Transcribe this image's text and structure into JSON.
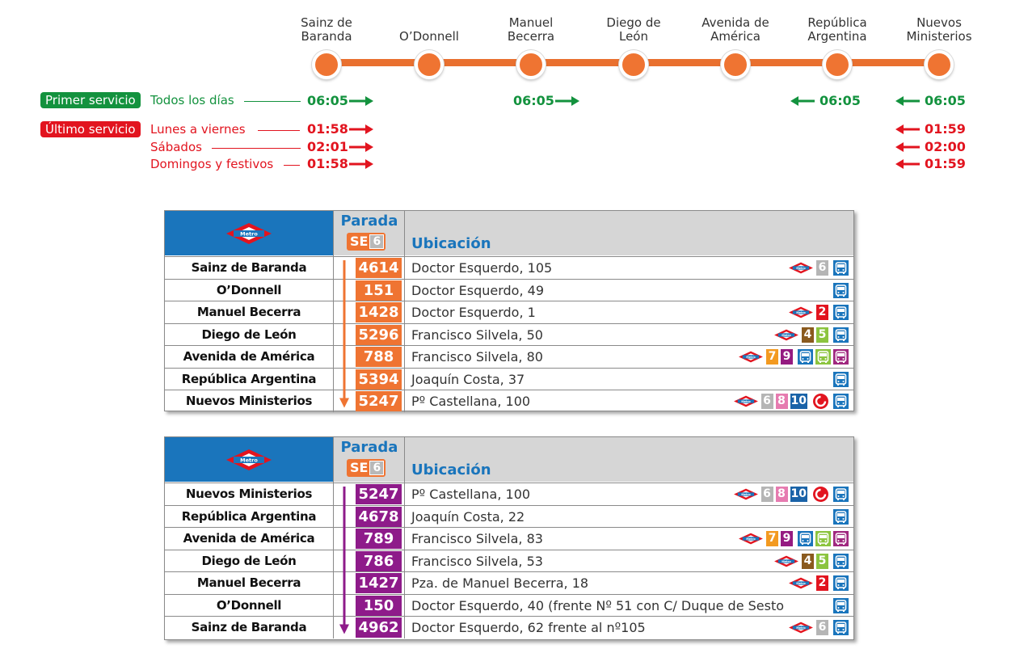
{
  "colors": {
    "orange": "#ef7432",
    "purple": "#8e1b8a",
    "metro_blue": "#1a75bc",
    "green": "#13923e",
    "red": "#e2141f",
    "line_2": "#e2141f",
    "line_4": "#8a5a1e",
    "line_5": "#8cc43f",
    "line_6": "#b5b5b5",
    "line_7": "#f39a20",
    "line_8": "#e67bb0",
    "line_9": "#951b81",
    "line_10": "#1a63a8",
    "bus_blue": "#1a75bc",
    "bus_green": "#8cc43f",
    "bus_purple": "#a0287f"
  },
  "stations": [
    {
      "name": "Sainz de Baranda"
    },
    {
      "name": "O'Donnell"
    },
    {
      "name": "Manuel Becerra"
    },
    {
      "name": "Diego de León"
    },
    {
      "name": "Avenida de América"
    },
    {
      "name": "República Argentina"
    },
    {
      "name": "Nuevos Ministerios"
    }
  ],
  "stations_display": [
    [
      "Sainz de",
      "Baranda"
    ],
    [
      "O’Donnell"
    ],
    [
      "Manuel",
      "Becerra"
    ],
    [
      "Diego de",
      "León"
    ],
    [
      "Avenida de",
      "América"
    ],
    [
      "República",
      "Argentina"
    ],
    [
      "Nuevos",
      "Ministerios"
    ]
  ],
  "first_service": {
    "badge": "Primer servicio",
    "label": "Todos los días",
    "times": [
      {
        "station": "Sainz de Baranda",
        "time": "06:05",
        "direction": "right"
      },
      {
        "station": "Manuel Becerra",
        "time": "06:05",
        "direction": "right"
      },
      {
        "station": "República Argentina",
        "time": "06:05",
        "direction": "left"
      },
      {
        "station": "Nuevos Ministerios",
        "time": "06:05",
        "direction": "left"
      }
    ]
  },
  "last_service": {
    "badge": "Último servicio",
    "rows": [
      {
        "label": "Lunes a viernes",
        "left_time": "01:58",
        "right_time": "01:59"
      },
      {
        "label": "Sábados",
        "left_time": "02:01",
        "right_time": "02:00"
      },
      {
        "label": "Domingos y festivos",
        "left_time": "01:58",
        "right_time": "01:59"
      }
    ]
  },
  "tables": [
    {
      "header": {
        "parada": "Parada",
        "line_code": "SE",
        "line_num": "6",
        "ubicacion": "Ubicación"
      },
      "accent": "orange",
      "rows": [
        {
          "name": "Sainz de Baranda",
          "code": "4614",
          "address": "Doctor Esquerdo, 105",
          "metro": true,
          "lines": [
            "6"
          ],
          "cercanias": false,
          "bus": [
            "blue"
          ]
        },
        {
          "name": "O’Donnell",
          "code": "151",
          "address": "Doctor Esquerdo, 49",
          "metro": false,
          "lines": [],
          "cercanias": false,
          "bus": [
            "blue"
          ]
        },
        {
          "name": "Manuel Becerra",
          "code": "1428",
          "address": "Doctor Esquerdo, 1",
          "metro": true,
          "lines": [
            "2"
          ],
          "cercanias": false,
          "bus": [
            "blue"
          ]
        },
        {
          "name": "Diego de León",
          "code": "5296",
          "address": "Francisco Silvela, 50",
          "metro": true,
          "lines": [
            "4",
            "5"
          ],
          "cercanias": false,
          "bus": [
            "blue"
          ]
        },
        {
          "name": "Avenida de América",
          "code": "788",
          "address": "Francisco Silvela, 80",
          "metro": true,
          "lines": [
            "7",
            "9"
          ],
          "cercanias": false,
          "bus": [
            "blue",
            "green",
            "purple"
          ]
        },
        {
          "name": "República Argentina",
          "code": "5394",
          "address": "Joaquín Costa, 37",
          "metro": false,
          "lines": [],
          "cercanias": false,
          "bus": [
            "blue"
          ]
        },
        {
          "name": "Nuevos Ministerios",
          "code": "5247",
          "address": "Pº Castellana, 100",
          "metro": true,
          "lines": [
            "6",
            "8",
            "10"
          ],
          "cercanias": true,
          "bus": [
            "blue"
          ]
        }
      ]
    },
    {
      "header": {
        "parada": "Parada",
        "line_code": "SE",
        "line_num": "6",
        "ubicacion": "Ubicación"
      },
      "accent": "purple",
      "rows": [
        {
          "name": "Nuevos Ministerios",
          "code": "5247",
          "address": "Pº Castellana, 100",
          "metro": true,
          "lines": [
            "6",
            "8",
            "10"
          ],
          "cercanias": true,
          "bus": [
            "blue"
          ]
        },
        {
          "name": "República Argentina",
          "code": "4678",
          "address": "Joaquín Costa, 22",
          "metro": false,
          "lines": [],
          "cercanias": false,
          "bus": [
            "blue"
          ]
        },
        {
          "name": "Avenida de América",
          "code": "789",
          "address": "Francisco Silvela, 83",
          "metro": true,
          "lines": [
            "7",
            "9"
          ],
          "cercanias": false,
          "bus": [
            "blue",
            "green",
            "purple"
          ]
        },
        {
          "name": "Diego de León",
          "code": "786",
          "address": "Francisco Silvela, 53",
          "metro": true,
          "lines": [
            "4",
            "5"
          ],
          "cercanias": false,
          "bus": [
            "blue"
          ]
        },
        {
          "name": "Manuel Becerra",
          "code": "1427",
          "address": "Pza. de Manuel Becerra, 18",
          "metro": true,
          "lines": [
            "2"
          ],
          "cercanias": false,
          "bus": [
            "blue"
          ]
        },
        {
          "name": "O’Donnell",
          "code": "150",
          "address": "Doctor Esquerdo, 40 (frente Nº 51 con C/ Duque de Sesto",
          "metro": false,
          "lines": [],
          "cercanias": false,
          "bus": [
            "blue"
          ]
        },
        {
          "name": "Sainz de Baranda",
          "code": "4962",
          "address": "Doctor Esquerdo, 62 frente al nº105",
          "metro": true,
          "lines": [
            "6"
          ],
          "cercanias": false,
          "bus": [
            "blue"
          ]
        }
      ]
    }
  ],
  "metro_logo_text": "Metro"
}
